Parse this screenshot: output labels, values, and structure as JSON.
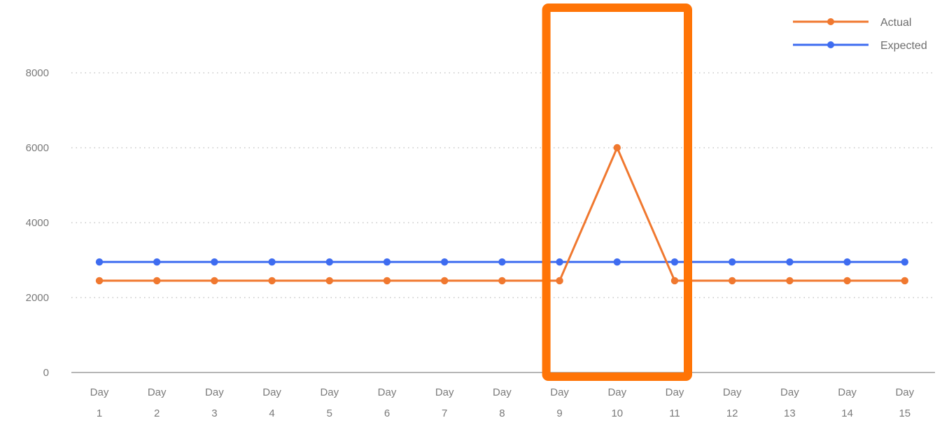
{
  "chart_data": {
    "type": "line",
    "categories": [
      [
        "Day",
        "1"
      ],
      [
        "Day",
        "2"
      ],
      [
        "Day",
        "3"
      ],
      [
        "Day",
        "4"
      ],
      [
        "Day",
        "5"
      ],
      [
        "Day",
        "6"
      ],
      [
        "Day",
        "7"
      ],
      [
        "Day",
        "8"
      ],
      [
        "Day",
        "9"
      ],
      [
        "Day",
        "10"
      ],
      [
        "Day",
        "11"
      ],
      [
        "Day",
        "12"
      ],
      [
        "Day",
        "13"
      ],
      [
        "Day",
        "14"
      ],
      [
        "Day",
        "15"
      ]
    ],
    "series": [
      {
        "name": "Actual",
        "color": "#f0782f",
        "values": [
          2450,
          2450,
          2450,
          2450,
          2450,
          2450,
          2450,
          2450,
          2450,
          6000,
          2450,
          2450,
          2450,
          2450,
          2450
        ]
      },
      {
        "name": "Expected",
        "color": "#3e6cf0",
        "values": [
          2950,
          2950,
          2950,
          2950,
          2950,
          2950,
          2950,
          2950,
          2950,
          2950,
          2950,
          2950,
          2950,
          2950,
          2950
        ]
      }
    ],
    "y_ticks": [
      "0",
      "2000",
      "4000",
      "6000",
      "8000"
    ],
    "ylim": [
      0,
      8000
    ],
    "grid": true,
    "legend_position": "top-right",
    "title": "",
    "xlabel": "",
    "ylabel": "",
    "highlight": {
      "from_category": "Day 9",
      "to_category": "Day 11",
      "color": "#ff7406"
    }
  }
}
